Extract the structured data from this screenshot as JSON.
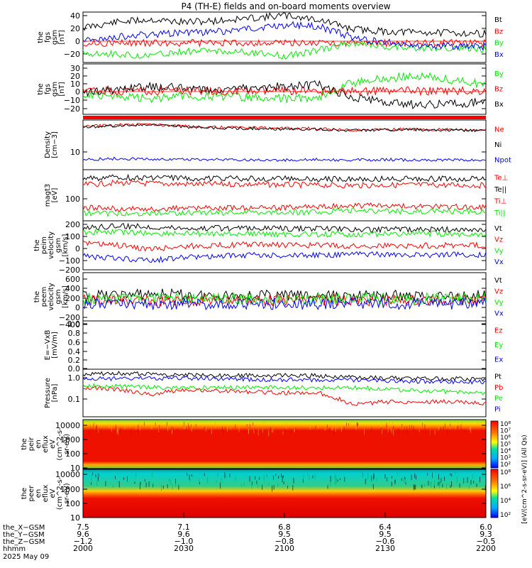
{
  "title": "P4 (TH-E) fields and on-board moments overview",
  "colors": {
    "black": "#000000",
    "red": "#ff0000",
    "green": "#00ee00",
    "blue": "#0000ff"
  },
  "panels": [
    {
      "id": "fgs-gsm",
      "ylabel": [
        "the",
        "fgs",
        "gsm",
        "[nT]"
      ],
      "ticks": [
        "40",
        "20",
        "0",
        "−20"
      ],
      "right_labels": [
        {
          "text": "Bt",
          "color": "#000000"
        },
        {
          "text": "Bz",
          "color": "#ff0000"
        },
        {
          "text": "By",
          "color": "#00ee00"
        },
        {
          "text": "Bx",
          "color": "#0000ff"
        }
      ]
    },
    {
      "id": "fgs-dsl",
      "ylabel": [
        "the",
        "fgs",
        "gsm",
        "[nT]"
      ],
      "ticks": [
        "30",
        "20",
        "10",
        "0",
        "−10",
        "−20"
      ],
      "right_labels": [
        {
          "text": "By",
          "color": "#00ee00"
        },
        {
          "text": "Bz",
          "color": "#ff0000"
        },
        {
          "text": "Bx",
          "color": "#000000"
        }
      ]
    },
    {
      "id": "density",
      "ylabel": [
        "Density",
        "[cm−3]"
      ],
      "ticks": [
        "10"
      ],
      "right_labels": [
        {
          "text": "Ne",
          "color": "#ff0000"
        },
        {
          "text": "Ni",
          "color": "#000000"
        },
        {
          "text": "Npot",
          "color": "#0000ff"
        }
      ]
    },
    {
      "id": "temperature",
      "ylabel": [
        "magt3",
        "[eV]"
      ],
      "ticks": [
        "100"
      ],
      "right_labels": [
        {
          "text": "Te⊥",
          "color": "#ff0000"
        },
        {
          "text": "Te||",
          "color": "#000000"
        },
        {
          "text": "Ti⊥",
          "color": "#ff0000"
        },
        {
          "text": "Ti||",
          "color": "#00ee00"
        }
      ]
    },
    {
      "id": "ion-velocity",
      "ylabel": [
        "the",
        "peim",
        "velocity",
        "gsm",
        "[km/s]"
      ],
      "ticks": [
        "200",
        "100",
        "0",
        "−100",
        "−200"
      ],
      "right_labels": [
        {
          "text": "Vt",
          "color": "#000000"
        },
        {
          "text": "Vz",
          "color": "#ff0000"
        },
        {
          "text": "Vy",
          "color": "#00ee00"
        },
        {
          "text": "Vx",
          "color": "#0000ff"
        }
      ]
    },
    {
      "id": "electron-velocity",
      "ylabel": [
        "the",
        "peem",
        "velocity",
        "gsm",
        "[km/s]"
      ],
      "ticks": [
        "600",
        "400",
        "200",
        "0",
        "−200",
        "−400"
      ],
      "right_labels": [
        {
          "text": "Vt",
          "color": "#000000"
        },
        {
          "text": "Vz",
          "color": "#ff0000"
        },
        {
          "text": "Vy",
          "color": "#00ee00"
        },
        {
          "text": "Vx",
          "color": "#0000ff"
        }
      ]
    },
    {
      "id": "efield",
      "ylabel": [
        "E=−VxB",
        "[mV/m]"
      ],
      "ticks": [
        "1.0",
        "0.8",
        "0.6",
        "0.4",
        "0.2",
        "0.0"
      ],
      "right_labels": [
        {
          "text": "Ez",
          "color": "#ff0000"
        },
        {
          "text": "Ey",
          "color": "#00ee00"
        },
        {
          "text": "Ex",
          "color": "#0000ff"
        }
      ]
    },
    {
      "id": "pressure",
      "ylabel": [
        "Pressure",
        "[nPa]"
      ],
      "ticks": [
        "1.0",
        "0.1"
      ],
      "right_labels": [
        {
          "text": "Pt",
          "color": "#000000"
        },
        {
          "text": "Pb",
          "color": "#ff0000"
        },
        {
          "text": "Pe",
          "color": "#00ee00"
        },
        {
          "text": "Pi",
          "color": "#0000ff"
        }
      ]
    },
    {
      "id": "ion-spectrogram",
      "ylabel": [
        "the",
        "peir",
        "en",
        "eflux",
        "eV",
        "(cm^2-s-",
        "sr-eV)"
      ],
      "ticks": [
        "10000",
        "1000",
        "100",
        "10"
      ]
    },
    {
      "id": "electron-spectrogram",
      "ylabel": [
        "the",
        "peer",
        "en",
        "eflux",
        "eV",
        "(cm^2-s-",
        "sr-eV)"
      ],
      "ticks": [
        "10000",
        "1000",
        "100",
        "10"
      ]
    }
  ],
  "colorbar": {
    "label": "[eV/(cm^2-s-sr-eV)] (All Qs)",
    "ion_ticks": [
      "10⁸",
      "10⁷",
      "10⁶",
      "10⁵",
      "10⁴",
      "10³",
      "10²"
    ],
    "electron_ticks": [
      "10⁸",
      "10⁶",
      "10⁴",
      "10²"
    ]
  },
  "bottom_axis": {
    "row_labels": [
      "the_X−GSM",
      "the_Y−GSM",
      "the_Z−GSM",
      "hhmm",
      "2025 May 09"
    ],
    "columns": [
      {
        "x": "7.5",
        "y": "9.6",
        "z": "−1.2",
        "t": "2000"
      },
      {
        "x": "7.1",
        "y": "9.6",
        "z": "−1.0",
        "t": "2030"
      },
      {
        "x": "6.8",
        "y": "9.5",
        "z": "−0.8",
        "t": "2100"
      },
      {
        "x": "6.4",
        "y": "9.5",
        "z": "−0.6",
        "t": "2130"
      },
      {
        "x": "6.0",
        "y": "9.3",
        "z": "−0.5",
        "t": "2200"
      }
    ]
  },
  "chart_data": {
    "type": "line",
    "title": "P4 (TH-E) fields and on-board moments overview",
    "x_unit": "hhmm",
    "x_ticks": [
      "2000",
      "2030",
      "2100",
      "2130",
      "2200"
    ],
    "panels": [
      {
        "name": "fgs-gsm",
        "ylim": [
          -30,
          45
        ],
        "series": [
          {
            "name": "Bt",
            "values": [
              22,
              30,
              34,
              30,
              32,
              36,
              40,
              34,
              20,
              16,
              15,
              14,
              13
            ]
          },
          {
            "name": "Bz",
            "values": [
              -1,
              -1,
              -1,
              -1,
              -1,
              -1,
              -1,
              -1,
              -1,
              -1,
              -1,
              -1,
              -1
            ]
          },
          {
            "name": "By",
            "values": [
              -15,
              -18,
              -20,
              -14,
              -12,
              -15,
              -20,
              -12,
              0,
              -6,
              -8,
              -10,
              -10
            ]
          },
          {
            "name": "Bx",
            "values": [
              2,
              8,
              12,
              14,
              16,
              20,
              26,
              24,
              8,
              0,
              -4,
              -6,
              -6
            ]
          }
        ]
      },
      {
        "name": "fgs-dsl",
        "ylim": [
          -30,
          35
        ],
        "series": [
          {
            "name": "By",
            "values": [
              -4,
              -6,
              -10,
              -6,
              -8,
              -8,
              -10,
              -8,
              10,
              16,
              20,
              14,
              8
            ]
          },
          {
            "name": "Bz",
            "values": [
              0,
              0,
              0,
              0,
              0,
              0,
              0,
              0,
              0,
              0,
              0,
              0,
              0
            ]
          },
          {
            "name": "Bx",
            "values": [
              -2,
              2,
              6,
              4,
              2,
              4,
              6,
              8,
              -8,
              -14,
              -18,
              -16,
              -14
            ]
          }
        ]
      },
      {
        "name": "density",
        "log": true,
        "ylim": [
          1,
          60
        ],
        "series": [
          {
            "name": "Ne",
            "values": [
              35,
              40,
              42,
              36,
              33,
              32,
              30,
              30,
              26,
              28,
              28,
              27,
              26
            ]
          },
          {
            "name": "Ni",
            "values": [
              33,
              38,
              40,
              34,
              31,
              30,
              28,
              28,
              25,
              27,
              27,
              26,
              25
            ]
          },
          {
            "name": "Npot",
            "values": [
              2.3,
              2.5,
              2.4,
              2.3,
              2.3,
              2.3,
              2.2,
              2.3,
              2.2,
              2.3,
              2.2,
              2.3,
              2.2
            ]
          }
        ]
      },
      {
        "name": "temperature",
        "log": true,
        "ylim": [
          20,
          600
        ],
        "series": [
          {
            "name": "Te⊥",
            "values": [
              220,
              250,
              240,
              230,
              230,
              225,
              220,
              215,
              210,
              215,
              220,
              215,
              210
            ]
          },
          {
            "name": "Te||",
            "values": [
              330,
              360,
              350,
              340,
              335,
              330,
              330,
              325,
              320,
              325,
              330,
              325,
              320
            ]
          },
          {
            "name": "Ti⊥",
            "values": [
              48,
              45,
              44,
              46,
              47,
              48,
              48,
              50,
              56,
              54,
              52,
              50,
              50
            ]
          },
          {
            "name": "Ti||",
            "values": [
              34,
              32,
              33,
              34,
              34,
              35,
              35,
              36,
              40,
              38,
              38,
              37,
              36
            ]
          }
        ]
      },
      {
        "name": "ion-velocity",
        "ylim": [
          -250,
          250
        ],
        "series": [
          {
            "name": "Vt",
            "values": [
              170,
              200,
              190,
              180,
              175,
              170,
              170,
              170,
              160,
              160,
              165,
              160,
              160
            ]
          },
          {
            "name": "Vz",
            "values": [
              20,
              0,
              -40,
              -10,
              0,
              10,
              5,
              0,
              -10,
              0,
              -5,
              0,
              0
            ]
          },
          {
            "name": "Vy",
            "values": [
              130,
              140,
              120,
              120,
              120,
              115,
              110,
              110,
              110,
              115,
              120,
              115,
              115
            ]
          },
          {
            "name": "Vx",
            "values": [
              -110,
              -130,
              -160,
              -120,
              -110,
              -100,
              -100,
              -100,
              -90,
              -95,
              -100,
              -95,
              -95
            ]
          }
        ]
      },
      {
        "name": "electron-velocity",
        "ylim": [
          -450,
          650
        ],
        "series": [
          {
            "name": "Vt",
            "values": [
              120,
              130,
              160,
              140,
              130,
              130,
              125,
              120,
              115,
              120,
              125,
              120,
              120
            ]
          },
          {
            "name": "Vz",
            "values": [
              30,
              20,
              0,
              20,
              25,
              25,
              25,
              25,
              25,
              25,
              25,
              25,
              25
            ]
          },
          {
            "name": "Vy",
            "values": [
              60,
              60,
              60,
              60,
              60,
              60,
              60,
              60,
              60,
              60,
              60,
              60,
              60
            ]
          },
          {
            "name": "Vx",
            "values": [
              -60,
              -60,
              -80,
              -60,
              -60,
              -60,
              -60,
              -60,
              -60,
              -60,
              -60,
              -60,
              -60
            ]
          }
        ]
      },
      {
        "name": "efield",
        "ylim": [
          0,
          1
        ],
        "series": [
          {
            "name": "Ez",
            "values": []
          },
          {
            "name": "Ey",
            "values": []
          },
          {
            "name": "Ex",
            "values": []
          }
        ]
      },
      {
        "name": "pressure",
        "log": true,
        "ylim": [
          0.02,
          1.6
        ],
        "series": [
          {
            "name": "Pt",
            "values": [
              1.0,
              1.1,
              1.0,
              0.95,
              0.9,
              0.9,
              0.9,
              0.88,
              0.75,
              0.7,
              0.68,
              0.66,
              0.64
            ]
          },
          {
            "name": "Pb",
            "values": [
              0.3,
              0.25,
              0.15,
              0.25,
              0.22,
              0.2,
              0.18,
              0.18,
              0.06,
              0.08,
              0.08,
              0.08,
              0.07
            ]
          },
          {
            "name": "Pe",
            "values": [
              0.35,
              0.33,
              0.3,
              0.28,
              0.3,
              0.3,
              0.3,
              0.28,
              0.3,
              0.25,
              0.22,
              0.2,
              0.18
            ]
          },
          {
            "name": "Pi",
            "values": [
              0.65,
              0.68,
              0.7,
              0.68,
              0.66,
              0.62,
              0.6,
              0.58,
              0.6,
              0.55,
              0.52,
              0.5,
              0.5
            ]
          }
        ]
      }
    ],
    "spectrograms": [
      {
        "name": "ion energy flux",
        "ylabel": "eV",
        "log": true,
        "ylim": [
          8,
          15000
        ]
      },
      {
        "name": "electron energy flux",
        "ylabel": "eV",
        "log": true,
        "ylim": [
          8,
          15000
        ]
      }
    ]
  }
}
